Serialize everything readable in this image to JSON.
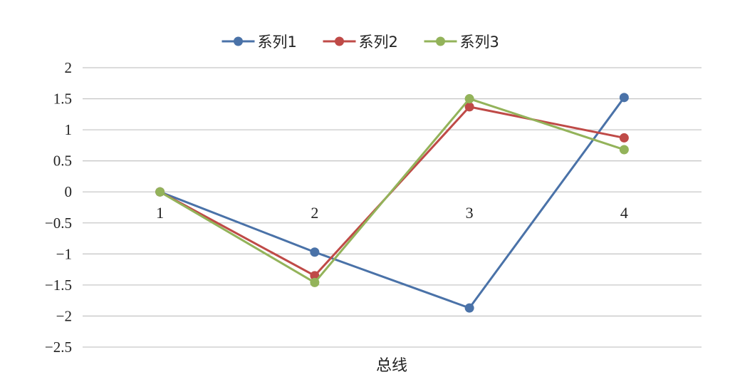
{
  "chart_data": {
    "type": "line",
    "categories": [
      "1",
      "2",
      "3",
      "4"
    ],
    "series": [
      {
        "name": "系列1",
        "values": [
          0,
          -0.97,
          -1.87,
          1.52
        ],
        "color": "#4a72a8"
      },
      {
        "name": "系列2",
        "values": [
          0,
          -1.35,
          1.37,
          0.87
        ],
        "color": "#bf4a47"
      },
      {
        "name": "系列3",
        "values": [
          0,
          -1.46,
          1.5,
          0.68
        ],
        "color": "#93b35a"
      }
    ],
    "xlabel": "总线",
    "ylabel": "",
    "ylim": [
      -2.5,
      2
    ],
    "yticks": [
      "2",
      "1.5",
      "1",
      "0.5",
      "0",
      "−0.5",
      "−1",
      "−1.5",
      "−2",
      "−2.5"
    ],
    "grid": true,
    "legend": "top-center"
  }
}
